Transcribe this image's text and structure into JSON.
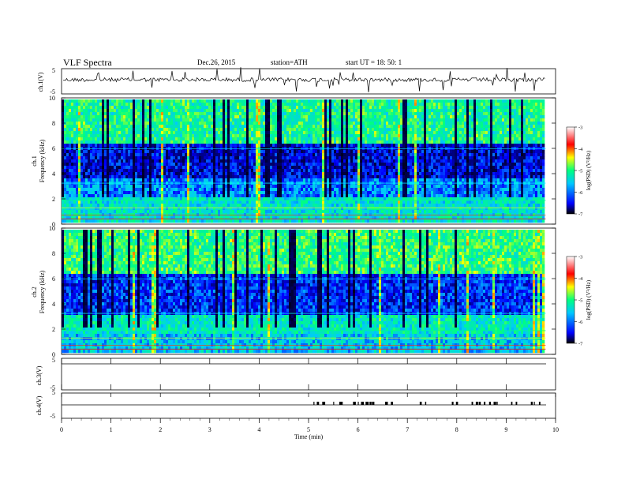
{
  "header": {
    "title": "VLF  Spectra",
    "date": "Dec.26, 2015",
    "station": "station=ATH",
    "start": "start  UT  =    18: 50: 1"
  },
  "chart_data": [
    {
      "type": "line",
      "panel": "ch1-waveform",
      "ylabel": "ch.1(V)",
      "ylim": [
        -5,
        5
      ],
      "yticks": [
        "5",
        "-5"
      ],
      "color": "#000000"
    },
    {
      "type": "heatmap",
      "panel": "ch1-spectrogram",
      "ylabel_top": "ch.1",
      "ylabel": "Frequency  (kHz)",
      "ylim": [
        0,
        10
      ],
      "yticks": [
        "0",
        "2",
        "4",
        "6",
        "8",
        "10"
      ],
      "colorbar": {
        "label": "log(PSD) (V²/Hz)",
        "range": [
          -7,
          -3
        ],
        "ticks": [
          "-3",
          "-4",
          "-5",
          "-6",
          "-7"
        ]
      }
    },
    {
      "type": "heatmap",
      "panel": "ch2-spectrogram",
      "ylabel_top": "ch.2",
      "ylabel": "Frequency  (kHz)",
      "ylim": [
        0,
        10
      ],
      "yticks": [
        "0",
        "2",
        "4",
        "6",
        "8",
        "10"
      ],
      "colorbar": {
        "label": "log(PSD) (V²/Hz)",
        "range": [
          -7,
          -3
        ],
        "ticks": [
          "-3",
          "-4",
          "-5",
          "-6",
          "-7"
        ]
      }
    },
    {
      "type": "line",
      "panel": "ch3-waveform",
      "ylabel": "ch.3(V)",
      "ylim": [
        -5,
        5
      ],
      "yticks": [
        "5",
        "-5"
      ]
    },
    {
      "type": "line",
      "panel": "ch4-waveform",
      "ylabel": "ch.4(V)",
      "ylim": [
        -5,
        5
      ],
      "yticks": [
        "5",
        "-5"
      ],
      "pulse_intervals": [
        [
          5.1,
          5.35
        ],
        [
          5.5,
          5.7
        ],
        [
          5.9,
          6.3
        ],
        [
          6.55,
          6.7
        ],
        [
          7.25,
          7.4
        ],
        [
          7.9,
          8.0
        ],
        [
          8.3,
          8.85
        ],
        [
          9.1,
          9.2
        ],
        [
          9.5,
          9.7
        ]
      ]
    }
  ],
  "xaxis": {
    "label": "Time  (min)",
    "range": [
      0,
      10
    ],
    "ticks": [
      "0",
      "1",
      "2",
      "3",
      "4",
      "5",
      "6",
      "7",
      "8",
      "9",
      "10"
    ],
    "data_end": 9.8
  },
  "colormap": [
    "#000000",
    "#0000ff",
    "#00ffff",
    "#00ff00",
    "#ffff00",
    "#ff0000",
    "#ffffff"
  ]
}
